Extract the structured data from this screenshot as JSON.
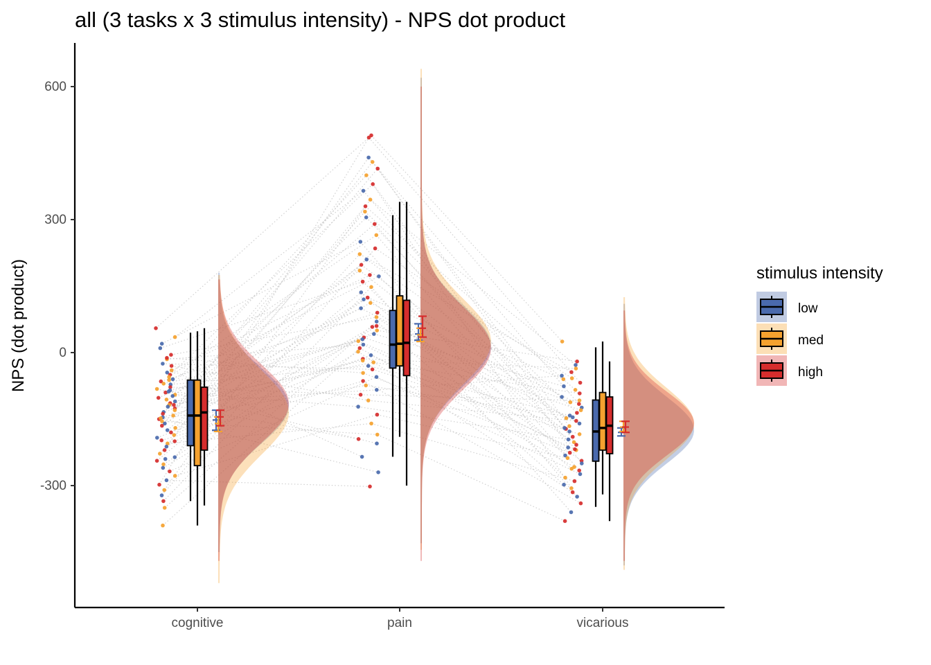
{
  "chart_data": {
    "type": "raincloud",
    "title": "all  (3 tasks x 3 stimulus intensity) - NPS dot product",
    "xlabel": "",
    "ylabel": "NPS (dot product)",
    "categories": [
      "cognitive",
      "pain",
      "vicarious"
    ],
    "y_ticks": [
      -300,
      0,
      300,
      600
    ],
    "y_tick_labels": [
      "-300",
      "0",
      "300",
      "600"
    ],
    "ylim": [
      -575,
      695
    ],
    "grid": false,
    "legend": {
      "title": "stimulus intensity",
      "position": "right",
      "entries": [
        "low",
        "med",
        "high"
      ]
    },
    "colors": {
      "low": "#4a6aad",
      "med": "#f5a22f",
      "high": "#d62d2d",
      "connector": "#c8c8c8"
    },
    "series": [
      {
        "name": "low",
        "boxplots": [
          {
            "category": "cognitive",
            "min": -335,
            "q1": -210,
            "median": -142,
            "q3": -62,
            "max": 45
          },
          {
            "category": "pain",
            "min": -235,
            "q1": -35,
            "median": 18,
            "q3": 95,
            "max": 310
          },
          {
            "category": "vicarious",
            "min": -348,
            "q1": -245,
            "median": -178,
            "q3": -107,
            "max": 12
          }
        ],
        "mean_se": [
          {
            "category": "cognitive",
            "mean": -152,
            "lo": -175,
            "hi": -130
          },
          {
            "category": "pain",
            "mean": 42,
            "lo": 28,
            "hi": 65
          },
          {
            "category": "vicarious",
            "mean": -180,
            "lo": -188,
            "hi": -170
          }
        ],
        "density": [
          {
            "category": "cognitive",
            "mu": -120,
            "sigma": 85,
            "from": -450,
            "to": 180
          },
          {
            "category": "pain",
            "mu": 15,
            "sigma": 90,
            "from": -430,
            "to": 620
          },
          {
            "category": "vicarious",
            "mu": -175,
            "sigma": 75,
            "from": -480,
            "to": 110
          }
        ]
      },
      {
        "name": "med",
        "boxplots": [
          {
            "category": "cognitive",
            "min": -390,
            "q1": -255,
            "median": -142,
            "q3": -62,
            "max": 48
          },
          {
            "category": "pain",
            "min": -190,
            "q1": -30,
            "median": 20,
            "q3": 128,
            "max": 340
          },
          {
            "category": "vicarious",
            "min": -320,
            "q1": -220,
            "median": -170,
            "q3": -90,
            "max": 25
          }
        ],
        "mean_se": [
          {
            "category": "cognitive",
            "mean": -160,
            "lo": -178,
            "hi": -145
          },
          {
            "category": "pain",
            "mean": 40,
            "lo": 25,
            "hi": 55
          },
          {
            "category": "vicarious",
            "mean": -168,
            "lo": -178,
            "hi": -155
          }
        ],
        "density": [
          {
            "category": "cognitive",
            "mu": -135,
            "sigma": 95,
            "from": -520,
            "to": 175
          },
          {
            "category": "pain",
            "mu": 25,
            "sigma": 95,
            "from": -445,
            "to": 640
          },
          {
            "category": "vicarious",
            "mu": -160,
            "sigma": 80,
            "from": -490,
            "to": 125
          }
        ]
      },
      {
        "name": "high",
        "boxplots": [
          {
            "category": "cognitive",
            "min": -345,
            "q1": -220,
            "median": -135,
            "q3": -78,
            "max": 55
          },
          {
            "category": "pain",
            "min": -300,
            "q1": -52,
            "median": 22,
            "q3": 118,
            "max": 340
          },
          {
            "category": "vicarious",
            "min": -380,
            "q1": -228,
            "median": -165,
            "q3": -100,
            "max": -20
          }
        ],
        "mean_se": [
          {
            "category": "cognitive",
            "mean": -145,
            "lo": -165,
            "hi": -130
          },
          {
            "category": "pain",
            "mean": 55,
            "lo": 35,
            "hi": 82
          },
          {
            "category": "vicarious",
            "mean": -168,
            "lo": -180,
            "hi": -155
          }
        ],
        "density": [
          {
            "category": "cognitive",
            "mu": -115,
            "sigma": 88,
            "from": -470,
            "to": 165
          },
          {
            "category": "pain",
            "mu": 10,
            "sigma": 92,
            "from": -470,
            "to": 600
          },
          {
            "category": "vicarious",
            "mu": -160,
            "sigma": 72,
            "from": -470,
            "to": 95
          }
        ]
      }
    ],
    "points": {
      "cognitive": [
        {
          "y": 55,
          "g": "high"
        },
        {
          "y": 35,
          "g": "med"
        },
        {
          "y": 20,
          "g": "low"
        },
        {
          "y": 10,
          "g": "low"
        },
        {
          "y": -5,
          "g": "high"
        },
        {
          "y": -15,
          "g": "med"
        },
        {
          "y": -25,
          "g": "low"
        },
        {
          "y": -30,
          "g": "high"
        },
        {
          "y": -40,
          "g": "med"
        },
        {
          "y": -45,
          "g": "low"
        },
        {
          "y": -50,
          "g": "high"
        },
        {
          "y": -55,
          "g": "med"
        },
        {
          "y": -60,
          "g": "low"
        },
        {
          "y": -65,
          "g": "high"
        },
        {
          "y": -70,
          "g": "med"
        },
        {
          "y": -72,
          "g": "low"
        },
        {
          "y": -78,
          "g": "high"
        },
        {
          "y": -82,
          "g": "med"
        },
        {
          "y": -85,
          "g": "low"
        },
        {
          "y": -90,
          "g": "high"
        },
        {
          "y": -95,
          "g": "med"
        },
        {
          "y": -98,
          "g": "low"
        },
        {
          "y": -102,
          "g": "high"
        },
        {
          "y": -106,
          "g": "med"
        },
        {
          "y": -110,
          "g": "low"
        },
        {
          "y": -114,
          "g": "high"
        },
        {
          "y": -118,
          "g": "med"
        },
        {
          "y": -122,
          "g": "low"
        },
        {
          "y": -126,
          "g": "high"
        },
        {
          "y": -130,
          "g": "med"
        },
        {
          "y": -134,
          "g": "low"
        },
        {
          "y": -138,
          "g": "high"
        },
        {
          "y": -142,
          "g": "med"
        },
        {
          "y": -146,
          "g": "low"
        },
        {
          "y": -150,
          "g": "high"
        },
        {
          "y": -155,
          "g": "med"
        },
        {
          "y": -160,
          "g": "low"
        },
        {
          "y": -165,
          "g": "high"
        },
        {
          "y": -170,
          "g": "med"
        },
        {
          "y": -175,
          "g": "low"
        },
        {
          "y": -180,
          "g": "high"
        },
        {
          "y": -186,
          "g": "med"
        },
        {
          "y": -192,
          "g": "low"
        },
        {
          "y": -198,
          "g": "high"
        },
        {
          "y": -205,
          "g": "med"
        },
        {
          "y": -212,
          "g": "low"
        },
        {
          "y": -220,
          "g": "high"
        },
        {
          "y": -228,
          "g": "med"
        },
        {
          "y": -236,
          "g": "low"
        },
        {
          "y": -244,
          "g": "high"
        },
        {
          "y": -252,
          "g": "med"
        },
        {
          "y": -260,
          "g": "low"
        },
        {
          "y": -268,
          "g": "high"
        },
        {
          "y": -278,
          "g": "med"
        },
        {
          "y": -288,
          "g": "low"
        },
        {
          "y": -298,
          "g": "high"
        },
        {
          "y": -310,
          "g": "med"
        },
        {
          "y": -322,
          "g": "low"
        },
        {
          "y": -335,
          "g": "high"
        },
        {
          "y": -350,
          "g": "med"
        },
        {
          "y": -390,
          "g": "med"
        },
        {
          "y": -12,
          "g": "high"
        },
        {
          "y": -88,
          "g": "low"
        },
        {
          "y": -148,
          "g": "med"
        },
        {
          "y": -200,
          "g": "high"
        },
        {
          "y": -240,
          "g": "low"
        },
        {
          "y": -118,
          "g": "high"
        },
        {
          "y": -62,
          "g": "med"
        }
      ],
      "pain": [
        {
          "y": 490,
          "g": "high"
        },
        {
          "y": 485,
          "g": "high"
        },
        {
          "y": 440,
          "g": "low"
        },
        {
          "y": 430,
          "g": "med"
        },
        {
          "y": 415,
          "g": "high"
        },
        {
          "y": 400,
          "g": "med"
        },
        {
          "y": 380,
          "g": "high"
        },
        {
          "y": 365,
          "g": "low"
        },
        {
          "y": 345,
          "g": "med"
        },
        {
          "y": 330,
          "g": "high"
        },
        {
          "y": 318,
          "g": "med"
        },
        {
          "y": 305,
          "g": "low"
        },
        {
          "y": 290,
          "g": "high"
        },
        {
          "y": 265,
          "g": "med"
        },
        {
          "y": 250,
          "g": "low"
        },
        {
          "y": 235,
          "g": "high"
        },
        {
          "y": 222,
          "g": "med"
        },
        {
          "y": 210,
          "g": "low"
        },
        {
          "y": 198,
          "g": "high"
        },
        {
          "y": 185,
          "g": "med"
        },
        {
          "y": 172,
          "g": "low"
        },
        {
          "y": 160,
          "g": "high"
        },
        {
          "y": 148,
          "g": "med"
        },
        {
          "y": 136,
          "g": "low"
        },
        {
          "y": 124,
          "g": "high"
        },
        {
          "y": 112,
          "g": "med"
        },
        {
          "y": 100,
          "g": "low"
        },
        {
          "y": 90,
          "g": "high"
        },
        {
          "y": 80,
          "g": "med"
        },
        {
          "y": 70,
          "g": "low"
        },
        {
          "y": 60,
          "g": "high"
        },
        {
          "y": 50,
          "g": "med"
        },
        {
          "y": 42,
          "g": "low"
        },
        {
          "y": 34,
          "g": "high"
        },
        {
          "y": 26,
          "g": "med"
        },
        {
          "y": 18,
          "g": "low"
        },
        {
          "y": 10,
          "g": "high"
        },
        {
          "y": 2,
          "g": "med"
        },
        {
          "y": -6,
          "g": "low"
        },
        {
          "y": -14,
          "g": "high"
        },
        {
          "y": -22,
          "g": "med"
        },
        {
          "y": -30,
          "g": "low"
        },
        {
          "y": -38,
          "g": "high"
        },
        {
          "y": -46,
          "g": "med"
        },
        {
          "y": -55,
          "g": "low"
        },
        {
          "y": -64,
          "g": "high"
        },
        {
          "y": -74,
          "g": "med"
        },
        {
          "y": -84,
          "g": "low"
        },
        {
          "y": -95,
          "g": "high"
        },
        {
          "y": -108,
          "g": "med"
        },
        {
          "y": -122,
          "g": "low"
        },
        {
          "y": -140,
          "g": "high"
        },
        {
          "y": -160,
          "g": "med"
        },
        {
          "y": -185,
          "g": "med"
        },
        {
          "y": -195,
          "g": "high"
        },
        {
          "y": -205,
          "g": "low"
        },
        {
          "y": -235,
          "g": "low"
        },
        {
          "y": -270,
          "g": "low"
        },
        {
          "y": -302,
          "g": "high"
        },
        {
          "y": 58,
          "g": "high"
        },
        {
          "y": 120,
          "g": "low"
        },
        {
          "y": -18,
          "g": "med"
        },
        {
          "y": 30,
          "g": "low"
        },
        {
          "y": 175,
          "g": "high"
        }
      ],
      "vicarious": [
        {
          "y": 25,
          "g": "med"
        },
        {
          "y": -20,
          "g": "high"
        },
        {
          "y": -28,
          "g": "low"
        },
        {
          "y": -36,
          "g": "med"
        },
        {
          "y": -44,
          "g": "high"
        },
        {
          "y": -52,
          "g": "low"
        },
        {
          "y": -60,
          "g": "med"
        },
        {
          "y": -68,
          "g": "high"
        },
        {
          "y": -76,
          "g": "low"
        },
        {
          "y": -84,
          "g": "med"
        },
        {
          "y": -92,
          "g": "high"
        },
        {
          "y": -100,
          "g": "low"
        },
        {
          "y": -108,
          "g": "med"
        },
        {
          "y": -116,
          "g": "high"
        },
        {
          "y": -124,
          "g": "low"
        },
        {
          "y": -130,
          "g": "med"
        },
        {
          "y": -136,
          "g": "high"
        },
        {
          "y": -142,
          "g": "low"
        },
        {
          "y": -148,
          "g": "med"
        },
        {
          "y": -154,
          "g": "high"
        },
        {
          "y": -160,
          "g": "low"
        },
        {
          "y": -166,
          "g": "med"
        },
        {
          "y": -172,
          "g": "high"
        },
        {
          "y": -178,
          "g": "low"
        },
        {
          "y": -184,
          "g": "med"
        },
        {
          "y": -190,
          "g": "high"
        },
        {
          "y": -196,
          "g": "low"
        },
        {
          "y": -202,
          "g": "med"
        },
        {
          "y": -208,
          "g": "high"
        },
        {
          "y": -214,
          "g": "low"
        },
        {
          "y": -220,
          "g": "med"
        },
        {
          "y": -226,
          "g": "high"
        },
        {
          "y": -232,
          "g": "low"
        },
        {
          "y": -238,
          "g": "med"
        },
        {
          "y": -244,
          "g": "high"
        },
        {
          "y": -250,
          "g": "low"
        },
        {
          "y": -258,
          "g": "med"
        },
        {
          "y": -266,
          "g": "high"
        },
        {
          "y": -274,
          "g": "low"
        },
        {
          "y": -282,
          "g": "med"
        },
        {
          "y": -290,
          "g": "high"
        },
        {
          "y": -298,
          "g": "low"
        },
        {
          "y": -306,
          "g": "med"
        },
        {
          "y": -315,
          "g": "high"
        },
        {
          "y": -325,
          "g": "low"
        },
        {
          "y": -340,
          "g": "high"
        },
        {
          "y": -360,
          "g": "low"
        },
        {
          "y": -380,
          "g": "high"
        },
        {
          "y": -112,
          "g": "med"
        },
        {
          "y": -170,
          "g": "low"
        },
        {
          "y": -218,
          "g": "high"
        },
        {
          "y": -58,
          "g": "med"
        },
        {
          "y": -146,
          "g": "low"
        },
        {
          "y": -262,
          "g": "med"
        }
      ]
    }
  }
}
